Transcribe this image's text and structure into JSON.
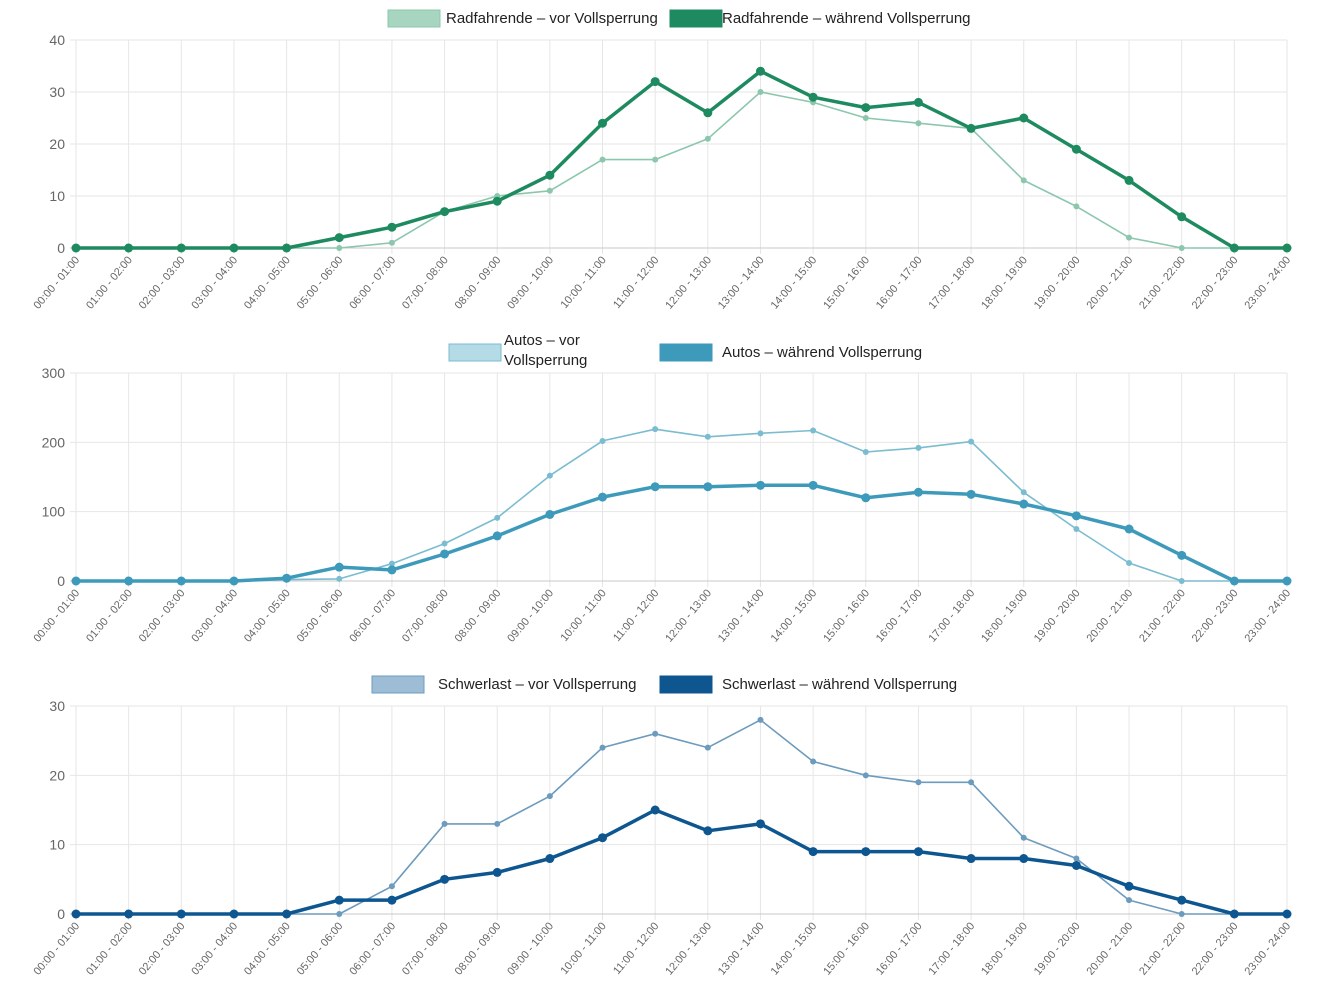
{
  "chart_data": [
    {
      "type": "line",
      "categories": [
        "00:00 - 01:00",
        "01:00 - 02:00",
        "02:00 - 03:00",
        "03:00 - 04:00",
        "04:00 - 05:00",
        "05:00 - 06:00",
        "06:00 - 07:00",
        "07:00 - 08:00",
        "08:00 - 09:00",
        "09:00 - 10:00",
        "10:00 - 11:00",
        "11:00 - 12:00",
        "12:00 - 13:00",
        "13:00 - 14:00",
        "14:00 - 15:00",
        "15:00 - 16:00",
        "16:00 - 17:00",
        "17:00 - 18:00",
        "18:00 - 19:00",
        "19:00 - 20:00",
        "20:00 - 21:00",
        "21:00 - 22:00",
        "22:00 - 23:00",
        "23:00 - 24:00"
      ],
      "series": [
        {
          "name": "Radfahrende – vor Vollsperrung",
          "color": "#8cc7ad",
          "fill": "#a7d5c0",
          "values": [
            0,
            0,
            0,
            0,
            0,
            0,
            1,
            7,
            10,
            11,
            17,
            17,
            21,
            30,
            28,
            25,
            24,
            23,
            13,
            8,
            2,
            0,
            0,
            0
          ]
        },
        {
          "name": "Radfahrende – während Vollsperrung",
          "color": "#1e8a60",
          "fill": "#1e8a60",
          "values": [
            0,
            0,
            0,
            0,
            0,
            2,
            4,
            7,
            9,
            14,
            24,
            32,
            26,
            34,
            29,
            27,
            28,
            23,
            25,
            19,
            13,
            6,
            0,
            0
          ]
        }
      ],
      "ylim": [
        0,
        40
      ],
      "yticks": [
        0,
        10,
        20,
        30,
        40
      ],
      "grid": true,
      "legend": "top-center"
    },
    {
      "type": "line",
      "categories": [
        "00:00 - 01:00",
        "01:00 - 02:00",
        "02:00 - 03:00",
        "03:00 - 04:00",
        "04:00 - 05:00",
        "05:00 - 06:00",
        "06:00 - 07:00",
        "07:00 - 08:00",
        "08:00 - 09:00",
        "09:00 - 10:00",
        "10:00 - 11:00",
        "11:00 - 12:00",
        "12:00 - 13:00",
        "13:00 - 14:00",
        "14:00 - 15:00",
        "15:00 - 16:00",
        "16:00 - 17:00",
        "17:00 - 18:00",
        "18:00 - 19:00",
        "19:00 - 20:00",
        "20:00 - 21:00",
        "21:00 - 22:00",
        "22:00 - 23:00",
        "23:00 - 24:00"
      ],
      "series": [
        {
          "name": "Autos – vor Vollsperrung",
          "name_lines": [
            "Autos – vor",
            "Vollsperrung"
          ],
          "color": "#7bbcd0",
          "fill": "#b5dbe6",
          "values": [
            0,
            0,
            0,
            0,
            2,
            3,
            25,
            54,
            91,
            152,
            202,
            219,
            208,
            213,
            217,
            186,
            192,
            201,
            128,
            75,
            26,
            0,
            0,
            0
          ]
        },
        {
          "name": "Autos – während Vollsperrung",
          "color": "#3d9aba",
          "fill": "#3d9aba",
          "values": [
            0,
            0,
            0,
            0,
            4,
            20,
            16,
            39,
            65,
            96,
            121,
            136,
            136,
            138,
            138,
            120,
            128,
            125,
            111,
            94,
            75,
            37,
            0,
            0
          ]
        }
      ],
      "ylim": [
        0,
        300
      ],
      "yticks": [
        0,
        100,
        200,
        300
      ],
      "grid": true,
      "legend": "top-center"
    },
    {
      "type": "line",
      "categories": [
        "00:00 - 01:00",
        "01:00 - 02:00",
        "02:00 - 03:00",
        "03:00 - 04:00",
        "04:00 - 05:00",
        "05:00 - 06:00",
        "06:00 - 07:00",
        "07:00 - 08:00",
        "08:00 - 09:00",
        "09:00 - 10:00",
        "10:00 - 11:00",
        "11:00 - 12:00",
        "12:00 - 13:00",
        "13:00 - 14:00",
        "14:00 - 15:00",
        "15:00 - 16:00",
        "16:00 - 17:00",
        "17:00 - 18:00",
        "18:00 - 19:00",
        "19:00 - 20:00",
        "20:00 - 21:00",
        "21:00 - 22:00",
        "22:00 - 23:00",
        "23:00 - 24:00"
      ],
      "series": [
        {
          "name": "Schwerlast – vor Vollsperrung",
          "color": "#6d9bbd",
          "fill": "#9dbcd6",
          "values": [
            0,
            0,
            0,
            0,
            0,
            0,
            4,
            13,
            13,
            17,
            24,
            26,
            24,
            28,
            22,
            20,
            19,
            19,
            11,
            8,
            2,
            0,
            0,
            0
          ]
        },
        {
          "name": "Schwerlast – während Vollsperrung",
          "color": "#0d5690",
          "fill": "#0d5690",
          "values": [
            0,
            0,
            0,
            0,
            0,
            2,
            2,
            5,
            6,
            8,
            11,
            15,
            12,
            13,
            9,
            9,
            9,
            8,
            8,
            7,
            4,
            2,
            0,
            0
          ]
        }
      ],
      "ylim": [
        0,
        30
      ],
      "yticks": [
        0,
        10,
        20,
        30
      ],
      "grid": true,
      "legend": "top-center"
    }
  ]
}
